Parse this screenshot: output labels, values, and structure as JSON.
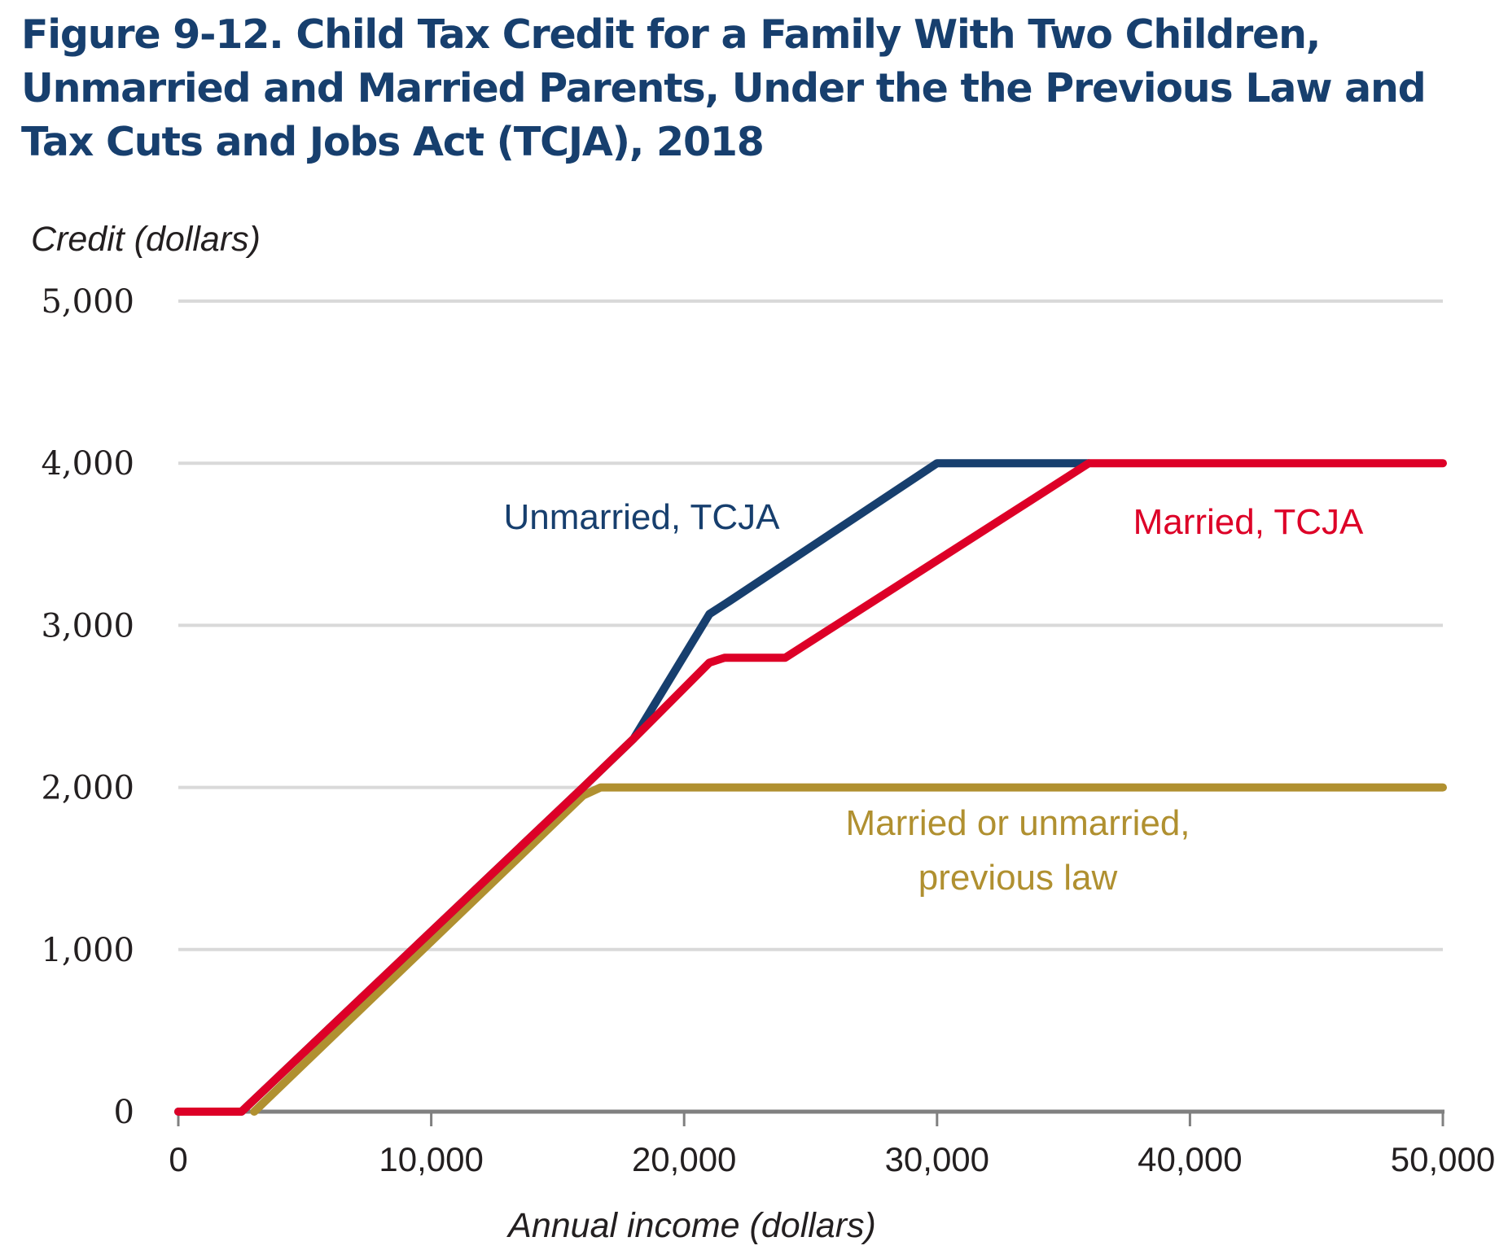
{
  "title_lines": [
    "Figure 9-12. Child Tax Credit for a Family With Two Children,",
    "Unmarried and Married Parents, Under the the Previous Law and",
    "Tax Cuts and Jobs Act (TCJA), 2018"
  ],
  "colors": {
    "title": "#173f6e",
    "unmarried_tcja": "#173f6e",
    "married_tcja": "#dd0027",
    "previous_law": "#b09030",
    "gridline": "#d9d9d9",
    "axis": "#808080",
    "text": "#231f20"
  },
  "chart_data": {
    "type": "line",
    "title": "Figure 9-12. Child Tax Credit for a Family With Two Children, Unmarried and Married Parents, Under the the Previous Law and Tax Cuts and Jobs Act (TCJA), 2018",
    "xlabel": "Annual income (dollars)",
    "ylabel": "Credit  (dollars)",
    "xlim": [
      0,
      50000
    ],
    "ylim": [
      0,
      5000
    ],
    "x_ticks": [
      0,
      10000,
      20000,
      30000,
      40000,
      50000
    ],
    "x_tick_labels": [
      "0",
      "10,000",
      "20,000",
      "30,000",
      "40,000",
      "50,000"
    ],
    "y_ticks": [
      0,
      1000,
      2000,
      3000,
      4000,
      5000
    ],
    "y_tick_labels": [
      "0",
      "1,000",
      "2,000",
      "3,000",
      "4,000",
      "5,000"
    ],
    "grid": "horizontal",
    "legend": "inline-labels",
    "series": [
      {
        "name": "Married or unmarried, previous law",
        "label_lines": [
          "Married or unmarried,",
          "previous law"
        ],
        "color_key": "previous_law",
        "points": [
          [
            3000,
            0
          ],
          [
            16000,
            1950
          ],
          [
            16700,
            2000
          ],
          [
            50000,
            2000
          ]
        ]
      },
      {
        "name": "Unmarried, TCJA",
        "label_lines": [
          "Unmarried, TCJA"
        ],
        "color_key": "unmarried_tcja",
        "points": [
          [
            0,
            0
          ],
          [
            2500,
            0
          ],
          [
            16000,
            2000
          ],
          [
            18000,
            2300
          ],
          [
            21000,
            3070
          ],
          [
            21800,
            3150
          ],
          [
            30000,
            4000
          ],
          [
            36000,
            4000
          ]
        ]
      },
      {
        "name": "Married, TCJA",
        "label_lines": [
          "Married, TCJA"
        ],
        "color_key": "married_tcja",
        "points": [
          [
            0,
            0
          ],
          [
            2500,
            0
          ],
          [
            16000,
            2000
          ],
          [
            18000,
            2300
          ],
          [
            21000,
            2770
          ],
          [
            21600,
            2800
          ],
          [
            24000,
            2800
          ],
          [
            30000,
            3400
          ],
          [
            36000,
            4000
          ],
          [
            50000,
            4000
          ]
        ]
      }
    ]
  }
}
